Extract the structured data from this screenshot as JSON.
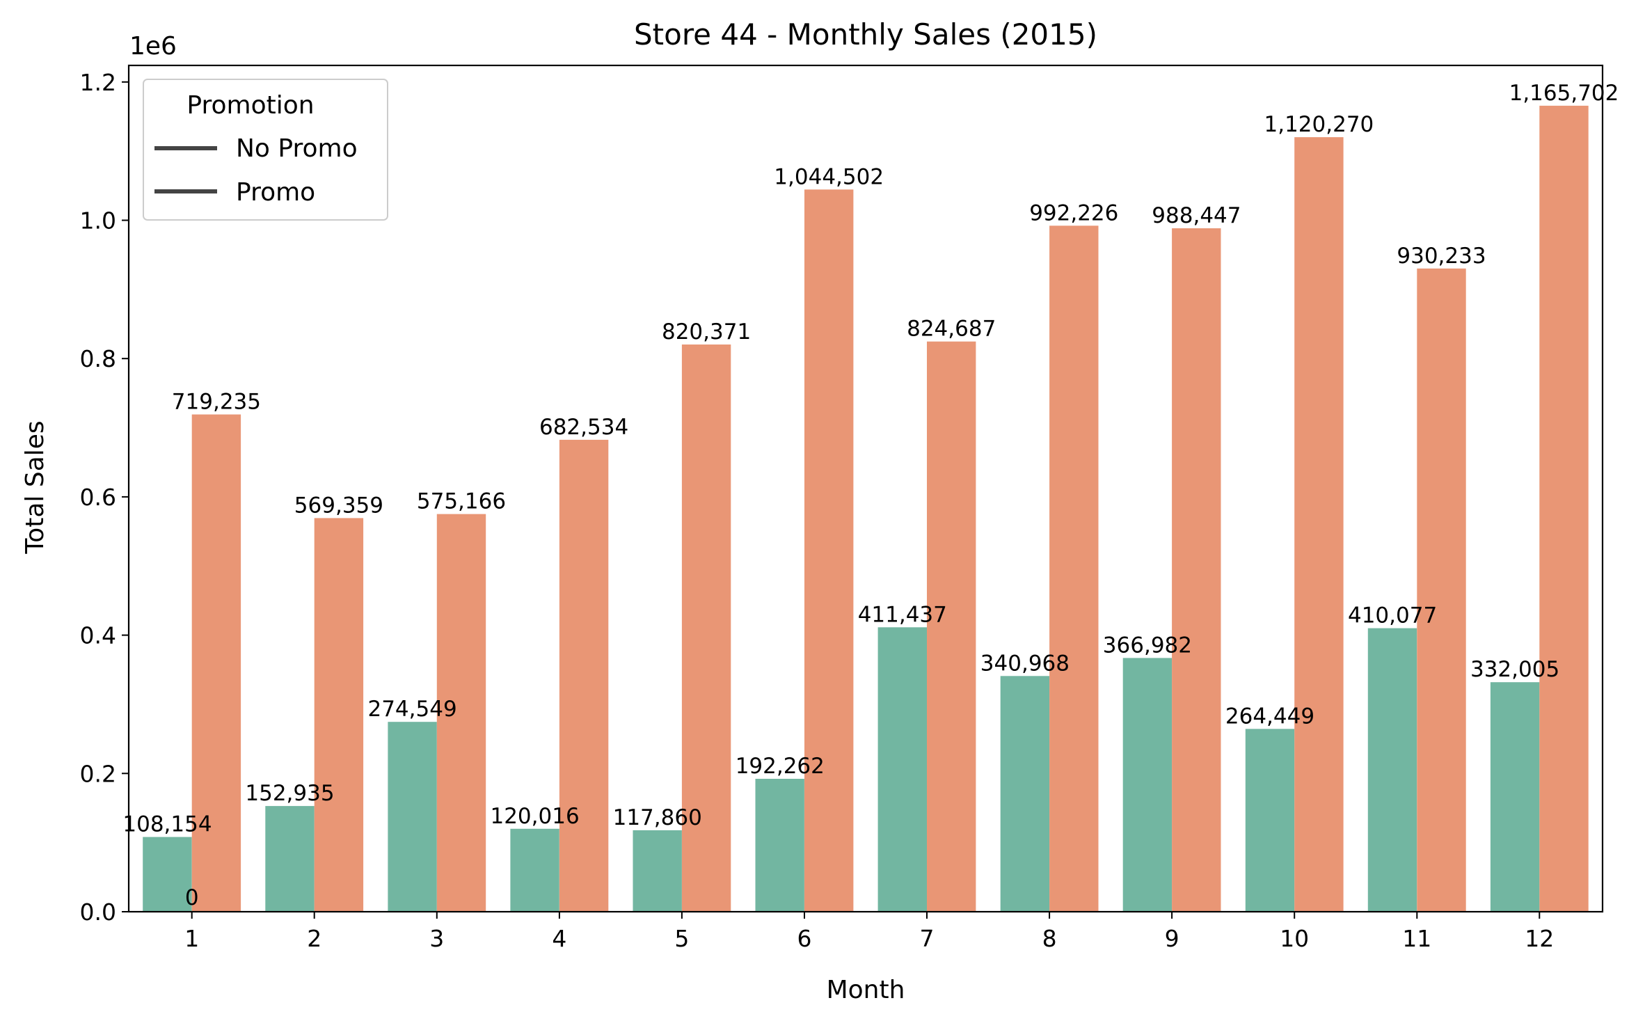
{
  "chart_data": {
    "type": "bar",
    "title": "Store 44 - Monthly Sales (2015)",
    "xlabel": "Month",
    "ylabel": "Total Sales",
    "y_scale_label": "1e6",
    "categories": [
      "1",
      "2",
      "3",
      "4",
      "5",
      "6",
      "7",
      "8",
      "9",
      "10",
      "11",
      "12"
    ],
    "ylim": [
      0,
      1.224
    ],
    "yticks": [
      0.0,
      0.2,
      0.4,
      0.6,
      0.8,
      1.0,
      1.2
    ],
    "ytick_labels": [
      "0.0",
      "0.2",
      "0.4",
      "0.6",
      "0.8",
      "1.0",
      "1.2"
    ],
    "grid": false,
    "legend": {
      "title": "Promotion",
      "placement": "top-left",
      "entries": [
        "No Promo",
        "Promo"
      ]
    },
    "series": [
      {
        "name": "No Promo",
        "color": "#72b6a1",
        "values": [
          108154,
          152935,
          274549,
          120016,
          117860,
          192262,
          411437,
          340968,
          366982,
          264449,
          410077,
          332005
        ],
        "labels": [
          "108,154",
          "152,935",
          "274,549",
          "120,016",
          "117,860",
          "192,262",
          "411,437",
          "340,968",
          "366,982",
          "264,449",
          "410,077",
          "332,005"
        ]
      },
      {
        "name": "Promo",
        "color": "#e99675",
        "values": [
          719235,
          569359,
          575166,
          682534,
          820371,
          1044502,
          824687,
          992226,
          988447,
          1120270,
          930233,
          1165702
        ],
        "labels": [
          "719,235",
          "569,359",
          "575,166",
          "682,534",
          "820,371",
          "1,044,502",
          "824,687",
          "992,226",
          "988,447",
          "1,120,270",
          "930,233",
          "1,165,702"
        ]
      }
    ],
    "extra_label": "0",
    "legend_line_color": "#444444"
  }
}
